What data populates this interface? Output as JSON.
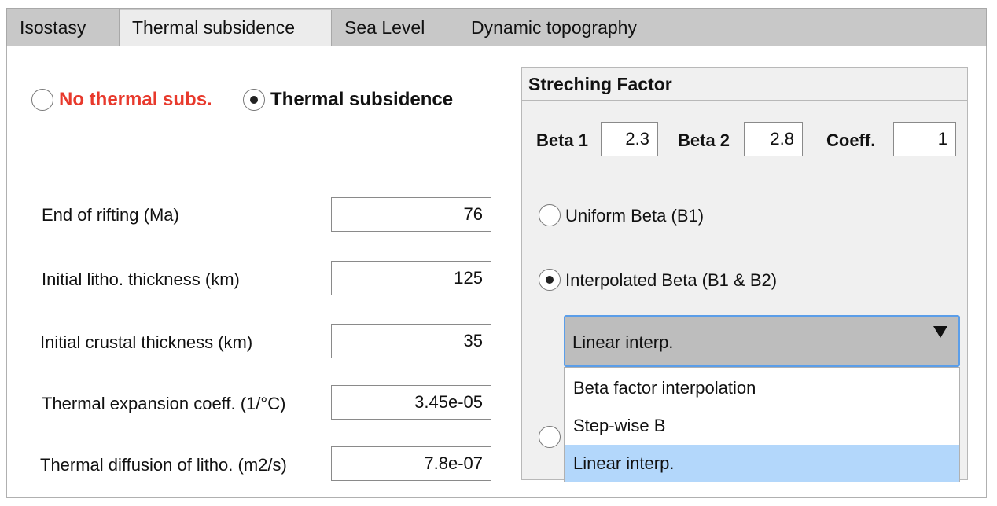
{
  "tabs": [
    {
      "label": "Isostasy"
    },
    {
      "label": "Thermal subsidence"
    },
    {
      "label": "Sea Level"
    },
    {
      "label": "Dynamic topography"
    }
  ],
  "mode": {
    "no_thermal_label": "No thermal subs.",
    "thermal_label": "Thermal subsidence",
    "selected": "thermal"
  },
  "params": [
    {
      "label": "End of rifting (Ma)",
      "value": "76"
    },
    {
      "label": "Initial litho. thickness (km)",
      "value": "125"
    },
    {
      "label": "Initial crustal thickness (km)",
      "value": "35"
    },
    {
      "label": "Thermal expansion coeff. (1/°C)",
      "value": "3.45e-05"
    },
    {
      "label": "Thermal diffusion of litho. (m2/s)",
      "value": "7.8e-07"
    }
  ],
  "stretching": {
    "title": "Streching Factor",
    "beta1_label": "Beta 1",
    "beta1_value": "2.3",
    "beta2_label": "Beta 2",
    "beta2_value": "2.8",
    "coeff_label": "Coeff.",
    "coeff_value": "1",
    "uniform_label": "Uniform Beta (B1)",
    "interpolated_label": "Interpolated Beta (B1 & B2)",
    "selected": "interpolated",
    "dropdown_value": "Linear interp.",
    "options": [
      "Beta factor interpolation",
      "Step-wise B",
      "Linear interp."
    ],
    "highlighted_option": "Linear interp."
  },
  "colors": {
    "accent_red": "#e8392c",
    "focus_blue": "#5b9ee9",
    "highlight": "#b3d7fb"
  }
}
